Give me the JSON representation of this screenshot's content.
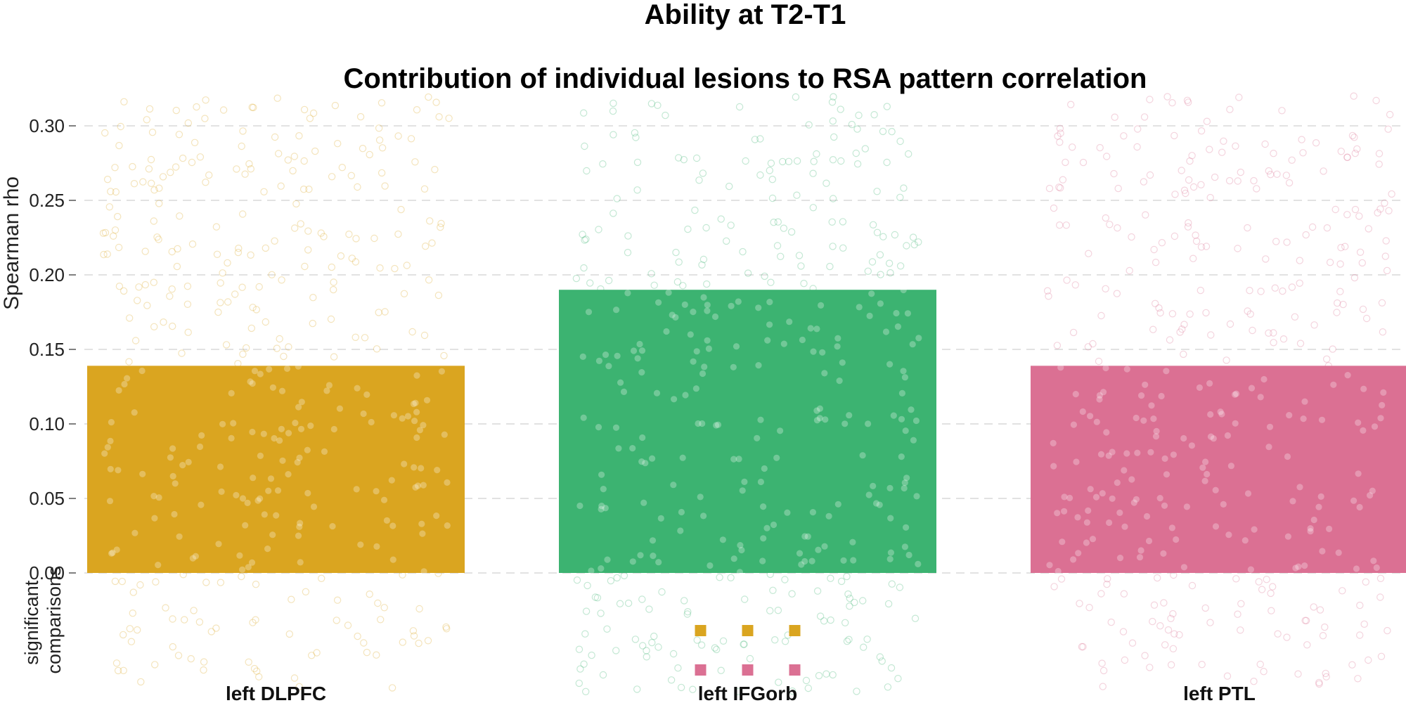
{
  "chart_data": {
    "type": "bar",
    "title": "Ability at T2-T1",
    "subtitle": "Contribution of individual lesions to RSA pattern correlation",
    "ylabel": "Spearman rho",
    "xlabel": "",
    "categories": [
      "left DLPFC",
      "left IFGorb",
      "left PTL"
    ],
    "values": [
      0.139,
      0.19,
      0.139
    ],
    "colors": [
      "#DAA520",
      "#3CB371",
      "#DB7093"
    ],
    "ylim": [
      -0.08,
      0.32
    ],
    "yticks": [
      0.0,
      0.05,
      0.1,
      0.15,
      0.2,
      0.25,
      0.3
    ],
    "ytick_labels": [
      "0.00",
      "0.05",
      "0.10",
      "0.15",
      "0.20",
      "0.25",
      "0.30"
    ],
    "grid": true,
    "jittered_points_per_bar": 400,
    "significance_label": "significant comparisons",
    "significance_markers": [
      {
        "category": "left IFGorb",
        "vs": "left DLPFC",
        "color": "#DAA520",
        "count": 3
      },
      {
        "category": "left IFGorb",
        "vs": "left PTL",
        "color": "#DB7093",
        "count": 3
      }
    ]
  }
}
